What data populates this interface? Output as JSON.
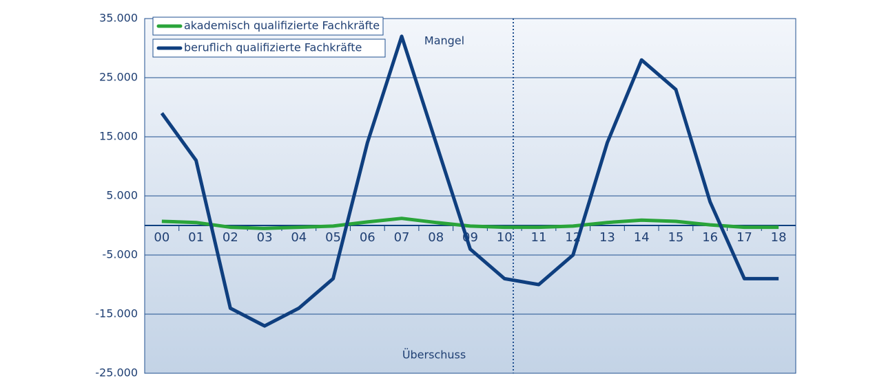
{
  "chart_data": {
    "type": "line",
    "categories": [
      "00",
      "01",
      "02",
      "03",
      "04",
      "05",
      "06",
      "07",
      "08",
      "09",
      "10",
      "11",
      "12",
      "13",
      "14",
      "15",
      "16",
      "17",
      "18"
    ],
    "series": [
      {
        "name": "akademisch qualifizierte Fachkräfte",
        "color": "#2aa43a",
        "values": [
          700,
          500,
          -300,
          -500,
          -300,
          -100,
          600,
          1200,
          500,
          -100,
          -300,
          -300,
          -100,
          500,
          900,
          700,
          100,
          -300,
          -300
        ]
      },
      {
        "name": "beruflich qualifizierte Fachkräfte",
        "color": "#0f3f7f",
        "values": [
          19000,
          11000,
          -14000,
          -17000,
          -14000,
          -9000,
          14000,
          32000,
          14000,
          -4000,
          -9000,
          -10000,
          -5000,
          14000,
          28000,
          23000,
          4000,
          -9000,
          -9000
        ]
      }
    ],
    "ylim": [
      -25000,
      35000
    ],
    "yticks": [
      {
        "value": -25000,
        "label": "-25.000"
      },
      {
        "value": -15000,
        "label": "-15.000"
      },
      {
        "value": -5000,
        "label": "-5.000"
      },
      {
        "value": 5000,
        "label": "5.000"
      },
      {
        "value": 15000,
        "label": "15.000"
      },
      {
        "value": 25000,
        "label": "25.000"
      },
      {
        "value": 35000,
        "label": "35.000"
      }
    ],
    "grid": true,
    "legend": "top-left",
    "annotations": [
      "Mangel",
      "Überschuss"
    ]
  }
}
